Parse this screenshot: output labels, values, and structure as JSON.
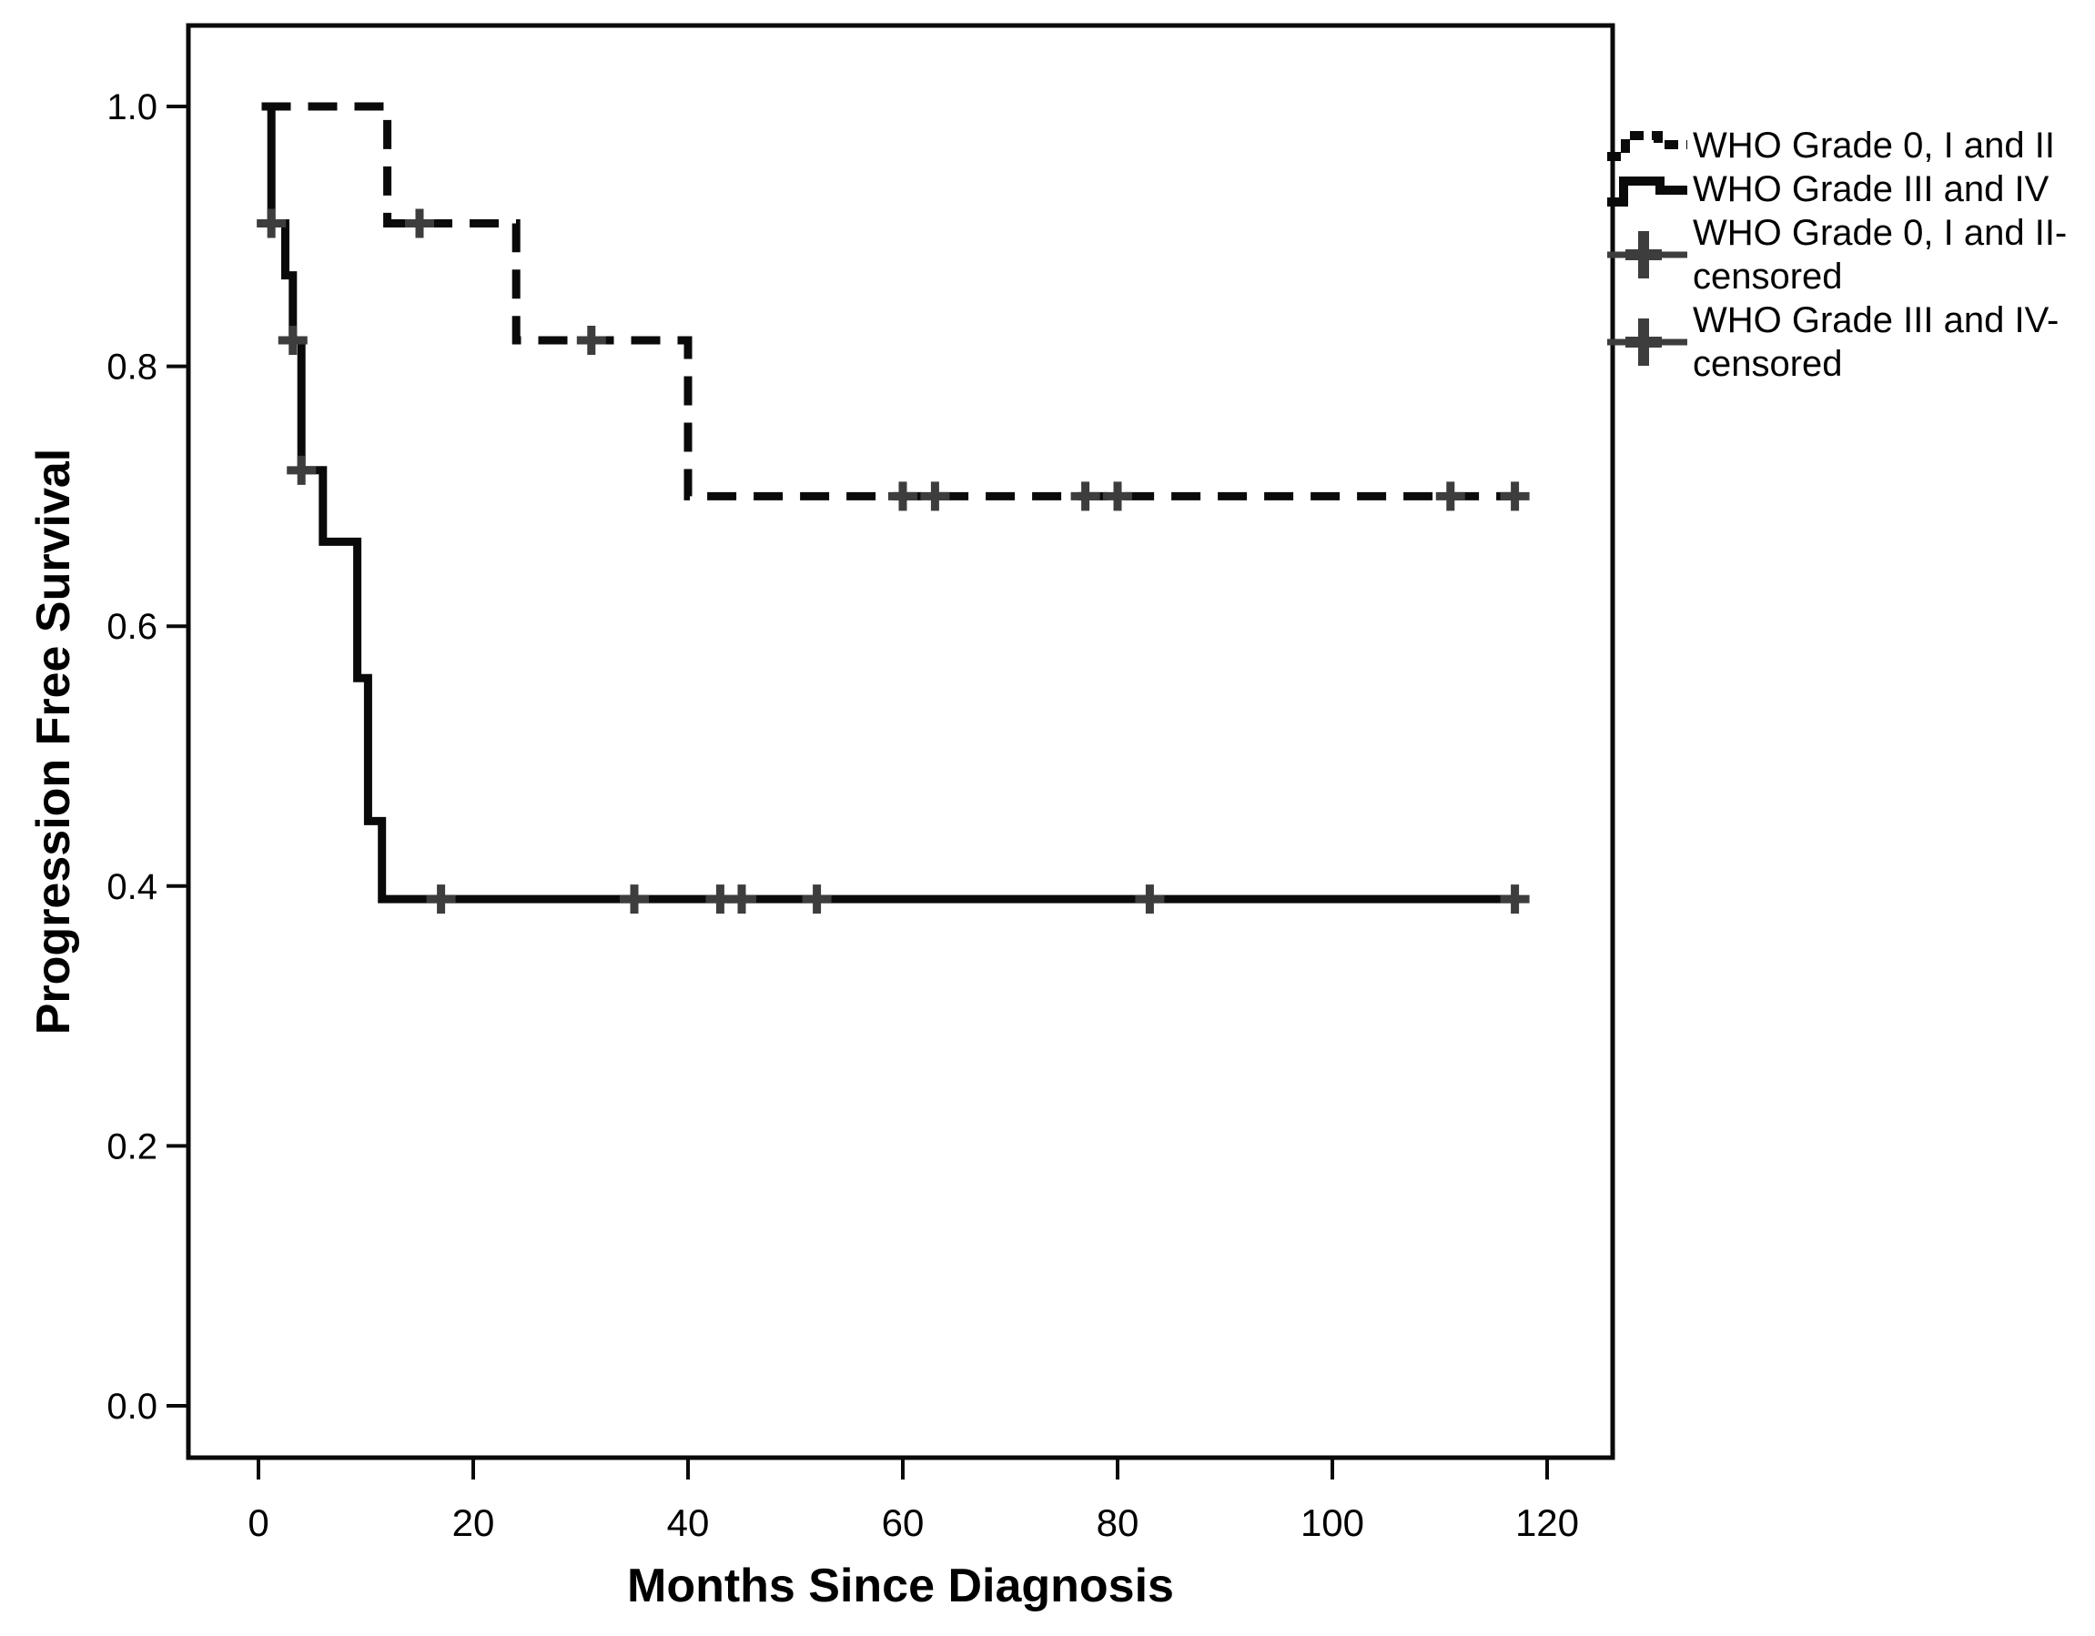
{
  "figure": {
    "background": "#ffffff",
    "line_color": "#0a0a0a",
    "censor_color": "#3d3d3d",
    "text_color": "#000000"
  },
  "chart_data": {
    "type": "line",
    "subtype": "kaplan-meier-step",
    "title": "",
    "xlabel": "Months Since Diagnosis",
    "ylabel": "Progression Free Survival",
    "xlim": [
      -6.5,
      126
    ],
    "ylim": [
      -0.04,
      1.06
    ],
    "grid": false,
    "legend_position": "right",
    "x_ticks": [
      {
        "value": 0,
        "label": "0"
      },
      {
        "value": 20,
        "label": "20"
      },
      {
        "value": 40,
        "label": "40"
      },
      {
        "value": 60,
        "label": "60"
      },
      {
        "value": 80,
        "label": "80"
      },
      {
        "value": 100,
        "label": "100"
      },
      {
        "value": 120,
        "label": "120"
      }
    ],
    "y_ticks": [
      {
        "value": 0.0,
        "label": "0.0"
      },
      {
        "value": 0.2,
        "label": "0.2"
      },
      {
        "value": 0.4,
        "label": "0.4"
      },
      {
        "value": 0.6,
        "label": "0.6"
      },
      {
        "value": 0.8,
        "label": "0.8"
      },
      {
        "value": 1.0,
        "label": "1.0"
      }
    ],
    "series": [
      {
        "name": "WHO Grade 0, I and II",
        "line_style": "dashed",
        "color": "#0a0a0a",
        "steps": [
          [
            0.3,
            1.0
          ],
          [
            12,
            1.0
          ],
          [
            12,
            0.91
          ],
          [
            24,
            0.91
          ],
          [
            24,
            0.82
          ],
          [
            40,
            0.82
          ],
          [
            40,
            0.7
          ],
          [
            117,
            0.7
          ]
        ],
        "censored_points": [
          [
            15,
            0.91
          ],
          [
            31,
            0.82
          ],
          [
            60,
            0.7
          ],
          [
            63,
            0.7
          ],
          [
            77,
            0.7
          ],
          [
            80,
            0.7
          ],
          [
            111,
            0.7
          ],
          [
            117,
            0.7
          ]
        ]
      },
      {
        "name": "WHO Grade III and IV",
        "line_style": "solid",
        "color": "#0a0a0a",
        "steps": [
          [
            0.3,
            1.0
          ],
          [
            1.2,
            1.0
          ],
          [
            1.2,
            0.91
          ],
          [
            2.5,
            0.91
          ],
          [
            2.5,
            0.87
          ],
          [
            3.2,
            0.87
          ],
          [
            3.2,
            0.82
          ],
          [
            4,
            0.82
          ],
          [
            4,
            0.72
          ],
          [
            6,
            0.72
          ],
          [
            6,
            0.665
          ],
          [
            9.2,
            0.665
          ],
          [
            9.2,
            0.56
          ],
          [
            10.2,
            0.56
          ],
          [
            10.2,
            0.45
          ],
          [
            11.5,
            0.45
          ],
          [
            11.5,
            0.39
          ],
          [
            117,
            0.39
          ]
        ],
        "censored_points": [
          [
            1.2,
            0.91
          ],
          [
            3.2,
            0.82
          ],
          [
            4,
            0.72
          ],
          [
            17,
            0.39
          ],
          [
            35,
            0.39
          ],
          [
            43,
            0.39
          ],
          [
            45,
            0.39
          ],
          [
            52,
            0.39
          ],
          [
            83,
            0.39
          ],
          [
            117,
            0.39
          ]
        ]
      }
    ]
  },
  "legend": {
    "items": [
      {
        "marker": "dashed-step",
        "lines": [
          "WHO Grade 0, I and II",
          ""
        ]
      },
      {
        "marker": "solid-step",
        "lines": [
          "WHO Grade III and IV",
          ""
        ]
      },
      {
        "marker": "plus",
        "lines": [
          "WHO Grade 0, I and II-",
          "censored"
        ]
      },
      {
        "marker": "plus",
        "lines": [
          "WHO Grade III and IV-",
          "censored"
        ]
      }
    ]
  }
}
